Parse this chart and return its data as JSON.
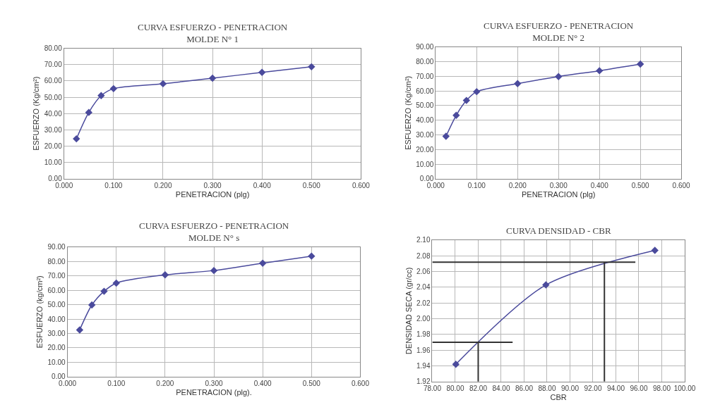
{
  "chart_data": [
    {
      "type": "line",
      "title": "CURVA ESFUERZO - PENETRACION\nMOLDE N° 1",
      "xlabel": "PENETRACION (plg)",
      "ylabel": "ESFUERZO (Kg/cm²)",
      "x": [
        0.025,
        0.05,
        0.075,
        0.1,
        0.2,
        0.3,
        0.4,
        0.5
      ],
      "series": [
        {
          "color": "#4a4a9c",
          "values": [
            24.5,
            40.7,
            51.0,
            55.3,
            58.3,
            61.7,
            65.3,
            68.7
          ]
        }
      ],
      "marker": "diamond",
      "grid": true,
      "xlim": [
        0,
        0.6
      ],
      "xticks": [
        {
          "value": 0,
          "label": "0.000"
        },
        {
          "value": 0.1,
          "label": "0.100"
        },
        {
          "value": 0.2,
          "label": "0.200"
        },
        {
          "value": 0.3,
          "label": "0.300"
        },
        {
          "value": 0.4,
          "label": "0.400"
        },
        {
          "value": 0.5,
          "label": "0.500"
        },
        {
          "value": 0.6,
          "label": "0.600"
        }
      ],
      "ylim": [
        0,
        80
      ],
      "yticks": [
        {
          "value": 0,
          "label": "0.00"
        },
        {
          "value": 10,
          "label": "10.00"
        },
        {
          "value": 20,
          "label": "20.00"
        },
        {
          "value": 30,
          "label": "30.00"
        },
        {
          "value": 40,
          "label": "40.00"
        },
        {
          "value": 50,
          "label": "50.00"
        },
        {
          "value": 60,
          "label": "60.00"
        },
        {
          "value": 70,
          "label": "70.00"
        },
        {
          "value": 80,
          "label": "80.00"
        }
      ]
    },
    {
      "type": "line",
      "title": "CURVA ESFUERZO - PENETRACION\nMOLDE N° 2",
      "xlabel": "PENETRACION (plg)",
      "ylabel": "ESFUERZO (Kg/cm²)",
      "x": [
        0.025,
        0.05,
        0.075,
        0.1,
        0.2,
        0.3,
        0.4,
        0.5
      ],
      "series": [
        {
          "color": "#4a4a9c",
          "values": [
            29.0,
            43.3,
            53.5,
            59.5,
            65.0,
            69.8,
            73.8,
            78.3
          ]
        }
      ],
      "marker": "diamond",
      "grid": true,
      "xlim": [
        0,
        0.6
      ],
      "xticks": [
        {
          "value": 0,
          "label": "0.000"
        },
        {
          "value": 0.1,
          "label": "0.100"
        },
        {
          "value": 0.2,
          "label": "0.200"
        },
        {
          "value": 0.3,
          "label": "0.300"
        },
        {
          "value": 0.4,
          "label": "0.400"
        },
        {
          "value": 0.5,
          "label": "0.500"
        },
        {
          "value": 0.6,
          "label": "0.600"
        }
      ],
      "ylim": [
        0,
        90
      ],
      "yticks": [
        {
          "value": 0,
          "label": "0.00"
        },
        {
          "value": 10,
          "label": "10.00"
        },
        {
          "value": 20,
          "label": "20.00"
        },
        {
          "value": 30,
          "label": "30.00"
        },
        {
          "value": 40,
          "label": "40.00"
        },
        {
          "value": 50,
          "label": "50.00"
        },
        {
          "value": 60,
          "label": "60.00"
        },
        {
          "value": 70,
          "label": "70.00"
        },
        {
          "value": 80,
          "label": "80.00"
        },
        {
          "value": 90,
          "label": "90.00"
        }
      ]
    },
    {
      "type": "line",
      "title": "CURVA ESFUERZO - PENETRACION\nMOLDE N° s",
      "xlabel": "PENETRACION (plg).",
      "ylabel": "ESFUERZO (kg/cm²)",
      "x": [
        0.025,
        0.05,
        0.075,
        0.1,
        0.2,
        0.3,
        0.4,
        0.5
      ],
      "series": [
        {
          "color": "#4a4a9c",
          "values": [
            32.5,
            49.8,
            59.3,
            65.0,
            70.7,
            73.7,
            78.8,
            83.7
          ]
        }
      ],
      "marker": "diamond",
      "grid": true,
      "xlim": [
        0,
        0.6
      ],
      "xticks": [
        {
          "value": 0,
          "label": "0.000"
        },
        {
          "value": 0.1,
          "label": "0.100"
        },
        {
          "value": 0.2,
          "label": "0.200"
        },
        {
          "value": 0.3,
          "label": "0.300"
        },
        {
          "value": 0.4,
          "label": "0.400"
        },
        {
          "value": 0.5,
          "label": "0.500"
        },
        {
          "value": 0.6,
          "label": "0.600"
        }
      ],
      "ylim": [
        0,
        90
      ],
      "yticks": [
        {
          "value": 0,
          "label": "0.00"
        },
        {
          "value": 10,
          "label": "10.00"
        },
        {
          "value": 20,
          "label": "20.00"
        },
        {
          "value": 30,
          "label": "30.00"
        },
        {
          "value": 40,
          "label": "40.00"
        },
        {
          "value": 50,
          "label": "50.00"
        },
        {
          "value": 60,
          "label": "60.00"
        },
        {
          "value": 70,
          "label": "70.00"
        },
        {
          "value": 80,
          "label": "80.00"
        },
        {
          "value": 90,
          "label": "90.00"
        }
      ]
    },
    {
      "type": "line",
      "title": "CURVA DENSIDAD - CBR",
      "xlabel": "CBR",
      "ylabel": "DENSIDAD SECA (gr/cc)",
      "series": [
        {
          "color": "#4a4a9c",
          "x": [
            80.05,
            87.9,
            97.4
          ],
          "values": [
            1.942,
            2.043,
            2.087
          ]
        },
        {
          "color": "#333333",
          "marker": "none",
          "x": [
            78,
            95.7
          ],
          "values": [
            2.072,
            2.072
          ]
        },
        {
          "color": "#333333",
          "marker": "none",
          "x": [
            93,
            93
          ],
          "values": [
            1.92,
            2.072
          ]
        },
        {
          "color": "#333333",
          "marker": "none",
          "x": [
            78,
            85
          ],
          "values": [
            1.97,
            1.97
          ]
        },
        {
          "color": "#333333",
          "marker": "none",
          "x": [
            82,
            82
          ],
          "values": [
            1.92,
            1.97
          ]
        }
      ],
      "marker": "diamond",
      "grid": true,
      "xlim": [
        78,
        100
      ],
      "xticks": [
        {
          "value": 78,
          "label": "78.00"
        },
        {
          "value": 80,
          "label": "80.00"
        },
        {
          "value": 82,
          "label": "82.00"
        },
        {
          "value": 84,
          "label": "84.00"
        },
        {
          "value": 86,
          "label": "86.00"
        },
        {
          "value": 88,
          "label": "88.00"
        },
        {
          "value": 90,
          "label": "90.00"
        },
        {
          "value": 92,
          "label": "92.00"
        },
        {
          "value": 94,
          "label": "94.00"
        },
        {
          "value": 96,
          "label": "96.00"
        },
        {
          "value": 98,
          "label": "98.00"
        },
        {
          "value": 100,
          "label": "100.00"
        }
      ],
      "ylim": [
        1.92,
        2.1
      ],
      "yticks": [
        1.92,
        1.94,
        1.96,
        1.98,
        {
          "value": 2.0,
          "label": "2.00"
        },
        2.02,
        2.04,
        2.06,
        2.08,
        {
          "value": 2.1,
          "label": "2.10"
        }
      ]
    }
  ]
}
